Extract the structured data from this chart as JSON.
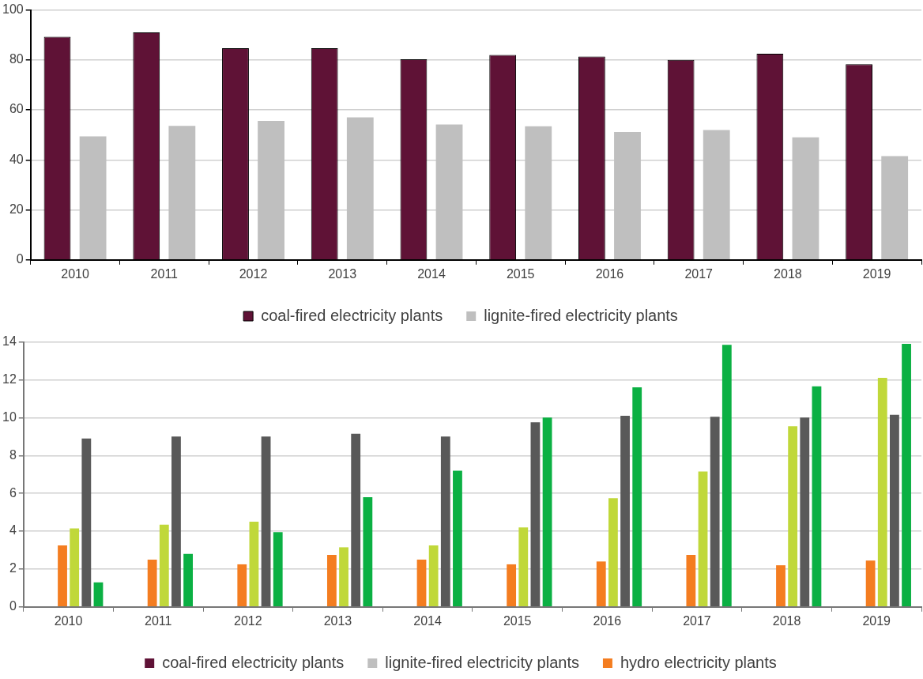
{
  "chart_data": [
    {
      "type": "bar",
      "categories": [
        "2010",
        "2011",
        "2012",
        "2013",
        "2014",
        "2015",
        "2016",
        "2017",
        "2018",
        "2019"
      ],
      "series": [
        {
          "name": "coal-fired electricity plants",
          "color": "#5f1236",
          "values": [
            89.3,
            91,
            84.7,
            84.7,
            80.3,
            82,
            81.4,
            80,
            82.5,
            78.3
          ]
        },
        {
          "name": "lignite-fired electricity plants",
          "color": "#bfbfbf",
          "values": [
            49.4,
            53.6,
            55.6,
            57,
            54.2,
            53.5,
            51.2,
            52,
            49,
            41.5
          ]
        }
      ],
      "ylim": [
        0,
        100
      ],
      "yticks": [
        0,
        20,
        40,
        60,
        80,
        100
      ],
      "grid": "y",
      "legend": "bottom"
    },
    {
      "type": "bar",
      "categories": [
        "2010",
        "2011",
        "2012",
        "2013",
        "2014",
        "2015",
        "2016",
        "2017",
        "2018",
        "2019"
      ],
      "series": [
        {
          "name": "coal-fired electricity plants",
          "color": "#5f1236",
          "values": [
            null,
            null,
            null,
            null,
            null,
            null,
            null,
            null,
            null,
            null
          ]
        },
        {
          "name": "lignite-fired electricity plants",
          "color": "#bfbfbf",
          "values": [
            null,
            null,
            null,
            null,
            null,
            null,
            null,
            null,
            null,
            null
          ]
        },
        {
          "name": "hydro electricity plants",
          "color": "#f47d20",
          "values": [
            3.25,
            2.5,
            2.25,
            2.75,
            2.5,
            2.25,
            2.4,
            2.75,
            2.2,
            2.45
          ]
        },
        {
          "color": "#c0d83a",
          "values": [
            4.15,
            4.35,
            4.5,
            3.15,
            3.25,
            4.2,
            5.75,
            7.15,
            9.55,
            12.1
          ]
        },
        {
          "color": "#595959",
          "values": [
            8.9,
            9.0,
            9.0,
            9.15,
            9.0,
            9.75,
            10.1,
            10.05,
            10.0,
            10.15
          ]
        },
        {
          "color": "#0bb043",
          "values": [
            1.3,
            2.8,
            3.95,
            5.8,
            7.2,
            10.0,
            11.6,
            13.85,
            11.65,
            13.9
          ]
        }
      ],
      "ylim": [
        0,
        14
      ],
      "yticks": [
        0,
        2,
        4,
        6,
        8,
        10,
        12,
        14
      ],
      "grid": "y",
      "legend": "bottom"
    }
  ]
}
